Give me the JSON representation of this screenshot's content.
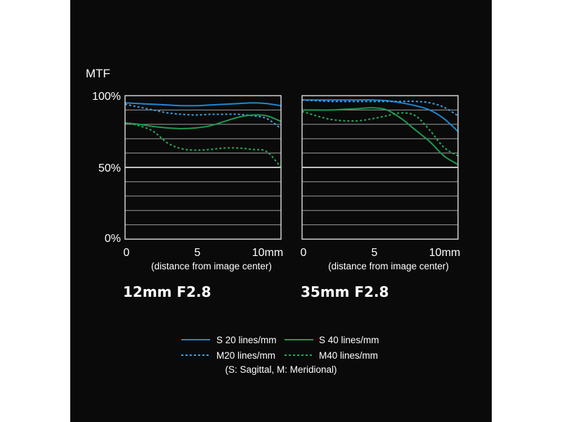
{
  "chart_data": {
    "type": "line",
    "ylabel": "MTF",
    "y_ticks": [
      "100%",
      "50%",
      "0%"
    ],
    "ylim": [
      0,
      100
    ],
    "xlim": [
      0,
      11
    ],
    "x_ticks": [
      "0",
      "5",
      "10mm"
    ],
    "xlabel": "(distance from image center)",
    "grid": true,
    "colors": {
      "s20": "#1e88d0",
      "m20": "#3fa0e0",
      "s40": "#1f9a50",
      "m40": "#2aa85a",
      "background": "#0a0a0a",
      "grid": "#9a9a9a"
    },
    "charts": [
      {
        "title": "12mm F2.8",
        "series": [
          {
            "key": "s20",
            "x": [
              0,
              1,
              2,
              3,
              4,
              5,
              6,
              7,
              8,
              9,
              10,
              11
            ],
            "y": [
              95,
              94.5,
              94,
              93.5,
              93,
              93,
              93.5,
              94,
              94.5,
              95,
              94.5,
              93
            ]
          },
          {
            "key": "m20",
            "x": [
              0,
              1,
              2,
              3,
              4,
              5,
              6,
              7,
              8,
              9,
              10,
              11
            ],
            "y": [
              94,
              92,
              90,
              88,
              87,
              86.5,
              87,
              87,
              87,
              86,
              84,
              77
            ]
          },
          {
            "key": "s40",
            "x": [
              0,
              1,
              2,
              3,
              4,
              5,
              6,
              7,
              8,
              9,
              10,
              11
            ],
            "y": [
              81,
              80,
              78.5,
              77.5,
              77,
              77.5,
              79,
              82,
              85,
              86.5,
              86,
              82
            ]
          },
          {
            "key": "m40",
            "x": [
              0,
              1,
              2,
              3,
              4,
              5,
              6,
              7,
              8,
              9,
              10,
              11
            ],
            "y": [
              81,
              79,
              75,
              67,
              63,
              62,
              62.5,
              63.5,
              63.5,
              62.5,
              61,
              50
            ]
          }
        ]
      },
      {
        "title": "35mm F2.8",
        "series": [
          {
            "key": "s20",
            "x": [
              0,
              1,
              2,
              3,
              4,
              5,
              6,
              7,
              8,
              9,
              10,
              11
            ],
            "y": [
              97,
              97,
              97,
              97,
              97,
              97,
              96.5,
              95,
              93,
              90,
              84,
              75
            ]
          },
          {
            "key": "m20",
            "x": [
              0,
              1,
              2,
              3,
              4,
              5,
              6,
              7,
              8,
              9,
              10,
              11
            ],
            "y": [
              97,
              96.5,
              96,
              96,
              96,
              96,
              96,
              96,
              96,
              95,
              92,
              86
            ]
          },
          {
            "key": "s40",
            "x": [
              0,
              1,
              2,
              3,
              4,
              5,
              6,
              7,
              8,
              9,
              10,
              11
            ],
            "y": [
              90,
              90,
              90,
              90.5,
              91,
              91.5,
              90,
              84,
              76,
              68,
              58,
              52
            ]
          },
          {
            "key": "m40",
            "x": [
              0,
              1,
              2,
              3,
              4,
              5,
              6,
              7,
              8,
              9,
              10,
              11
            ],
            "y": [
              89,
              86,
              83.5,
              82.5,
              82.5,
              84,
              86,
              88,
              86,
              76,
              64,
              58
            ]
          }
        ]
      }
    ],
    "legend": {
      "items": [
        {
          "key": "s20",
          "label": "S 20 lines/mm"
        },
        {
          "key": "s40",
          "label": "S 40 lines/mm"
        },
        {
          "key": "m20",
          "label": "M20 lines/mm"
        },
        {
          "key": "m40",
          "label": "M40 lines/mm"
        }
      ],
      "note": "(S: Sagittal, M: Meridional)",
      "placement": "bottom"
    }
  }
}
